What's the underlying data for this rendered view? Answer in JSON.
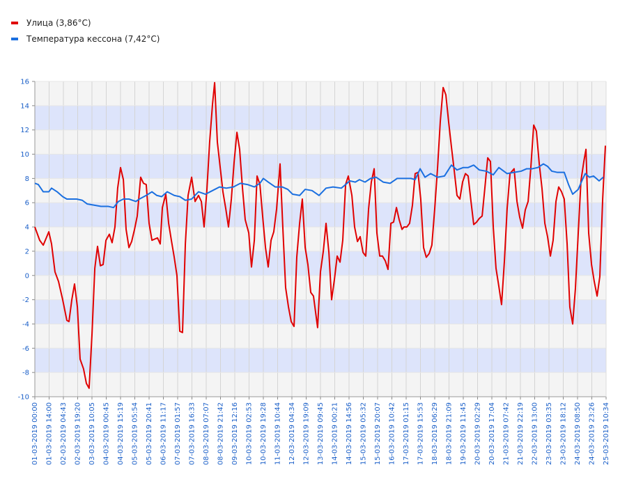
{
  "chart_data": {
    "type": "line",
    "grid": true,
    "band_colors": [
      "#f4f4f4",
      "#dde4fb"
    ],
    "legend": "top-left",
    "xlim": [
      0,
      40
    ],
    "xticks": [
      {
        "value": 0,
        "label": "01-03-2019 00:00"
      },
      {
        "value": 1,
        "label": "01-03-2019 14:00"
      },
      {
        "value": 2,
        "label": "02-03-2019 04:43"
      },
      {
        "value": 3,
        "label": "02-03-2019 19:20"
      },
      {
        "value": 4,
        "label": "03-03-2019 10:05"
      },
      {
        "value": 5,
        "label": "04-03-2019 00:45"
      },
      {
        "value": 6,
        "label": "04-03-2019 15:19"
      },
      {
        "value": 7,
        "label": "05-03-2019 05:54"
      },
      {
        "value": 8,
        "label": "05-03-2019 20:41"
      },
      {
        "value": 9,
        "label": "06-03-2019 11:17"
      },
      {
        "value": 10,
        "label": "07-03-2019 01:57"
      },
      {
        "value": 11,
        "label": "07-03-2019 16:33"
      },
      {
        "value": 12,
        "label": "08-03-2019 07:07"
      },
      {
        "value": 13,
        "label": "08-03-2019 21:42"
      },
      {
        "value": 14,
        "label": "09-03-2019 12:16"
      },
      {
        "value": 15,
        "label": "10-03-2019 02:53"
      },
      {
        "value": 16,
        "label": "10-03-2019 19:28"
      },
      {
        "value": 17,
        "label": "11-03-2019 10:44"
      },
      {
        "value": 18,
        "label": "12-03-2019 04:34"
      },
      {
        "value": 19,
        "label": "12-03-2019 19:09"
      },
      {
        "value": 20,
        "label": "13-03-2019 09:45"
      },
      {
        "value": 21,
        "label": "14-03-2019 00:21"
      },
      {
        "value": 22,
        "label": "14-03-2019 14:56"
      },
      {
        "value": 23,
        "label": "15-03-2019 05:32"
      },
      {
        "value": 24,
        "label": "15-03-2019 20:07"
      },
      {
        "value": 25,
        "label": "16-03-2019 10:42"
      },
      {
        "value": 26,
        "label": "17-03-2019 01:15"
      },
      {
        "value": 27,
        "label": "17-03-2019 15:53"
      },
      {
        "value": 28,
        "label": "18-03-2019 06:29"
      },
      {
        "value": 29,
        "label": "18-03-2019 21:09"
      },
      {
        "value": 30,
        "label": "19-03-2019 11:45"
      },
      {
        "value": 31,
        "label": "20-03-2019 02:29"
      },
      {
        "value": 32,
        "label": "20-03-2019 17:04"
      },
      {
        "value": 33,
        "label": "21-03-2019 07:42"
      },
      {
        "value": 34,
        "label": "21-03-2019 22:19"
      },
      {
        "value": 35,
        "label": "22-03-2019 13:00"
      },
      {
        "value": 36,
        "label": "23-03-2019 03:35"
      },
      {
        "value": 37,
        "label": "23-03-2019 18:12"
      },
      {
        "value": 38,
        "label": "24-03-2019 08:50"
      },
      {
        "value": 39,
        "label": "24-03-2019 23:26"
      },
      {
        "value": 40,
        "label": "25-03-2019 10:34"
      }
    ],
    "ylim": [
      -10,
      16
    ],
    "yticks": [
      -10,
      -8,
      -6,
      -4,
      -2,
      0,
      2,
      4,
      6,
      8,
      10,
      12,
      14,
      16
    ],
    "series": [
      {
        "name": "Улица (3,86°C)",
        "color": "#e00000",
        "x": [
          0,
          0.34,
          0.59,
          0.98,
          1.17,
          1.41,
          1.66,
          1.95,
          2.24,
          2.39,
          2.59,
          2.78,
          2.98,
          3.17,
          3.41,
          3.61,
          3.8,
          4.0,
          4.2,
          4.39,
          4.59,
          4.78,
          4.98,
          5.22,
          5.41,
          5.61,
          5.8,
          6.0,
          6.2,
          6.39,
          6.59,
          6.78,
          6.98,
          7.17,
          7.41,
          7.61,
          7.8,
          8.0,
          8.2,
          8.39,
          8.59,
          8.78,
          8.93,
          9.17,
          9.37,
          9.56,
          9.76,
          9.95,
          10.15,
          10.34,
          10.54,
          10.73,
          10.98,
          11.22,
          11.46,
          11.66,
          11.85,
          12.05,
          12.24,
          12.44,
          12.59,
          12.78,
          12.98,
          13.17,
          13.37,
          13.56,
          13.76,
          13.95,
          14.15,
          14.34,
          14.54,
          14.73,
          14.98,
          15.17,
          15.37,
          15.56,
          15.76,
          15.95,
          16.15,
          16.34,
          16.54,
          16.73,
          16.93,
          17.17,
          17.37,
          17.56,
          17.76,
          17.95,
          18.15,
          18.34,
          18.54,
          18.73,
          18.93,
          19.12,
          19.32,
          19.51,
          19.8,
          20.0,
          20.2,
          20.39,
          20.59,
          20.78,
          20.98,
          21.17,
          21.37,
          21.56,
          21.76,
          21.95,
          22.2,
          22.39,
          22.59,
          22.78,
          22.98,
          23.17,
          23.37,
          23.56,
          23.76,
          23.95,
          24.15,
          24.34,
          24.54,
          24.73,
          24.93,
          25.12,
          25.32,
          25.51,
          25.71,
          25.85,
          26.05,
          26.24,
          26.44,
          26.63,
          26.83,
          27.02,
          27.22,
          27.41,
          27.61,
          27.8,
          28.0,
          28.2,
          28.39,
          28.59,
          28.78,
          28.98,
          29.17,
          29.37,
          29.56,
          29.76,
          29.95,
          30.15,
          30.34,
          30.54,
          30.73,
          30.93,
          31.12,
          31.32,
          31.51,
          31.71,
          31.9,
          32.1,
          32.29,
          32.49,
          32.68,
          32.88,
          33.07,
          33.27,
          33.56,
          33.76,
          33.95,
          34.15,
          34.34,
          34.54,
          34.73,
          34.93,
          35.12,
          35.32,
          35.51,
          35.71,
          35.9,
          36.1,
          36.29,
          36.49,
          36.68,
          36.88,
          37.07,
          37.27,
          37.46,
          37.66,
          37.85,
          38.05,
          38.24,
          38.44,
          38.59,
          38.78,
          38.98,
          39.17,
          39.37,
          39.56,
          39.76,
          39.95
        ],
        "values": [
          4.0,
          2.9,
          2.5,
          3.6,
          2.6,
          0.3,
          -0.5,
          -2.0,
          -3.7,
          -3.8,
          -2.0,
          -0.7,
          -2.6,
          -6.9,
          -7.7,
          -8.9,
          -9.3,
          -4.9,
          0.6,
          2.4,
          0.8,
          0.9,
          2.9,
          3.4,
          2.7,
          4.0,
          7.2,
          8.9,
          7.9,
          3.8,
          2.3,
          2.8,
          3.8,
          4.9,
          8.1,
          7.6,
          7.5,
          4.3,
          2.9,
          3.0,
          3.1,
          2.6,
          5.6,
          6.7,
          4.3,
          2.9,
          1.5,
          0.0,
          -4.6,
          -4.7,
          2.6,
          6.6,
          8.1,
          6.1,
          6.6,
          6.1,
          4.0,
          7.1,
          11.0,
          14.1,
          15.9,
          11.0,
          8.9,
          6.9,
          5.5,
          4.0,
          6.3,
          9.3,
          11.8,
          10.4,
          7.2,
          4.6,
          3.5,
          0.7,
          2.9,
          8.2,
          7.5,
          4.9,
          2.3,
          0.7,
          2.9,
          3.6,
          5.5,
          9.2,
          3.8,
          -1.0,
          -2.6,
          -3.8,
          -4.2,
          1.5,
          4.3,
          6.3,
          2.3,
          0.9,
          -1.4,
          -1.7,
          -4.3,
          0.3,
          2.0,
          4.3,
          1.9,
          -2.0,
          -0.3,
          1.6,
          1.1,
          2.9,
          7.5,
          8.2,
          6.6,
          4.0,
          2.8,
          3.2,
          1.9,
          1.6,
          5.5,
          7.7,
          8.8,
          3.5,
          1.6,
          1.6,
          1.2,
          0.5,
          4.3,
          4.4,
          5.6,
          4.6,
          3.8,
          4.0,
          4.0,
          4.3,
          5.8,
          8.4,
          8.5,
          6.3,
          2.3,
          1.5,
          1.8,
          2.5,
          5.5,
          8.9,
          12.7,
          15.5,
          14.9,
          12.6,
          10.6,
          8.6,
          6.6,
          6.3,
          7.7,
          8.4,
          8.2,
          6.1,
          4.2,
          4.4,
          4.7,
          4.9,
          7.2,
          9.7,
          9.4,
          4.0,
          0.6,
          -0.9,
          -2.4,
          1.2,
          5.5,
          8.4,
          8.8,
          6.1,
          4.8,
          3.9,
          5.4,
          6.1,
          8.9,
          12.4,
          11.9,
          9.2,
          7.2,
          4.3,
          3.2,
          1.6,
          2.9,
          6.1,
          7.3,
          6.9,
          6.3,
          2.6,
          -2.6,
          -4.0,
          -1.1,
          3.5,
          7.8,
          9.4,
          10.4,
          3.5,
          0.9,
          -0.5,
          -1.7,
          -0.1,
          6.3,
          10.7
        ]
      },
      {
        "name": "Температура кессона (7,42°C)",
        "color": "#1a6fe0",
        "x": [
          0,
          0.24,
          0.59,
          0.98,
          1.17,
          1.56,
          1.95,
          2.24,
          2.68,
          2.93,
          3.32,
          3.66,
          4.15,
          4.63,
          5.12,
          5.51,
          5.85,
          6.2,
          6.59,
          7.07,
          7.32,
          7.8,
          8.2,
          8.54,
          8.88,
          9.27,
          9.76,
          10.15,
          10.54,
          10.98,
          11.46,
          11.95,
          12.44,
          12.93,
          13.41,
          13.9,
          14.39,
          14.88,
          15.37,
          15.76,
          16.0,
          16.34,
          16.83,
          17.32,
          17.71,
          18.05,
          18.54,
          18.93,
          19.41,
          19.9,
          20.39,
          20.88,
          21.46,
          21.76,
          22.05,
          22.44,
          22.73,
          23.12,
          23.51,
          23.9,
          24.39,
          24.88,
          25.37,
          25.85,
          26.34,
          26.63,
          26.98,
          27.32,
          27.71,
          28.2,
          28.68,
          29.17,
          29.56,
          30.0,
          30.34,
          30.73,
          31.12,
          31.61,
          32.1,
          32.49,
          33.07,
          33.56,
          34.05,
          34.44,
          34.83,
          35.22,
          35.61,
          35.9,
          36.2,
          36.59,
          37.07,
          37.37,
          37.66,
          38.05,
          38.34,
          38.54,
          38.83,
          39.12,
          39.51,
          39.8
        ],
        "values": [
          7.6,
          7.5,
          6.9,
          6.9,
          7.2,
          6.9,
          6.5,
          6.3,
          6.3,
          6.3,
          6.2,
          5.9,
          5.8,
          5.7,
          5.7,
          5.6,
          6.1,
          6.3,
          6.3,
          6.1,
          6.3,
          6.6,
          6.9,
          6.6,
          6.5,
          6.9,
          6.6,
          6.5,
          6.2,
          6.3,
          6.9,
          6.7,
          7.0,
          7.3,
          7.2,
          7.3,
          7.6,
          7.5,
          7.3,
          7.6,
          8.0,
          7.7,
          7.3,
          7.3,
          7.1,
          6.7,
          6.6,
          7.1,
          7.0,
          6.6,
          7.2,
          7.3,
          7.2,
          7.5,
          7.8,
          7.7,
          7.9,
          7.7,
          8.0,
          8.1,
          7.7,
          7.6,
          8.0,
          8.0,
          8.0,
          7.9,
          8.8,
          8.1,
          8.4,
          8.1,
          8.2,
          9.1,
          8.7,
          8.9,
          8.9,
          9.1,
          8.7,
          8.6,
          8.3,
          8.9,
          8.4,
          8.5,
          8.6,
          8.8,
          8.8,
          8.9,
          9.2,
          9.0,
          8.6,
          8.5,
          8.5,
          7.5,
          6.7,
          7.1,
          7.9,
          8.4,
          8.1,
          8.2,
          7.8,
          8.1
        ]
      }
    ]
  }
}
